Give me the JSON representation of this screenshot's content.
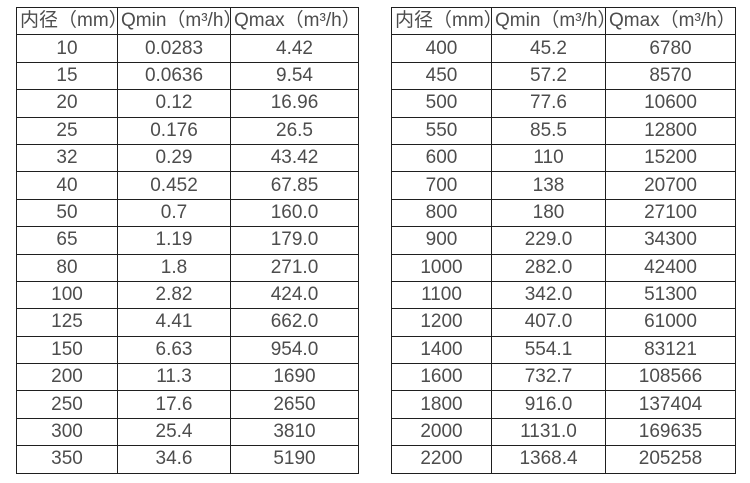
{
  "colors": {
    "background": "#ffffff",
    "border": "#1f1f1f",
    "text": "#4d4d4d"
  },
  "chart_data": [
    {
      "type": "table",
      "name": "flow-spec-table-small-diameters",
      "columns": [
        "内径（mm）",
        "Qmin（m³/h）",
        "Qmax（m³/h）"
      ],
      "rows": [
        [
          "10",
          "0.0283",
          "4.42"
        ],
        [
          "15",
          "0.0636",
          "9.54"
        ],
        [
          "20",
          "0.12",
          "16.96"
        ],
        [
          "25",
          "0.176",
          "26.5"
        ],
        [
          "32",
          "0.29",
          "43.42"
        ],
        [
          "40",
          "0.452",
          "67.85"
        ],
        [
          "50",
          "0.7",
          "160.0"
        ],
        [
          "65",
          "1.19",
          "179.0"
        ],
        [
          "80",
          "1.8",
          "271.0"
        ],
        [
          "100",
          "2.82",
          "424.0"
        ],
        [
          "125",
          "4.41",
          "662.0"
        ],
        [
          "150",
          "6.63",
          "954.0"
        ],
        [
          "200",
          "11.3",
          "1690"
        ],
        [
          "250",
          "17.6",
          "2650"
        ],
        [
          "300",
          "25.4",
          "3810"
        ],
        [
          "350",
          "34.6",
          "5190"
        ]
      ]
    },
    {
      "type": "table",
      "name": "flow-spec-table-large-diameters",
      "columns": [
        "内径（mm）",
        "Qmin（m³/h）",
        "Qmax（m³/h）"
      ],
      "rows": [
        [
          "400",
          "45.2",
          "6780"
        ],
        [
          "450",
          "57.2",
          "8570"
        ],
        [
          "500",
          "77.6",
          "10600"
        ],
        [
          "550",
          "85.5",
          "12800"
        ],
        [
          "600",
          "110",
          "15200"
        ],
        [
          "700",
          "138",
          "20700"
        ],
        [
          "800",
          "180",
          "27100"
        ],
        [
          "900",
          "229.0",
          "34300"
        ],
        [
          "1000",
          "282.0",
          "42400"
        ],
        [
          "1100",
          "342.0",
          "51300"
        ],
        [
          "1200",
          "407.0",
          "61000"
        ],
        [
          "1400",
          "554.1",
          "83121"
        ],
        [
          "1600",
          "732.7",
          "108566"
        ],
        [
          "1800",
          "916.0",
          "137404"
        ],
        [
          "2000",
          "1131.0",
          "169635"
        ],
        [
          "2200",
          "1368.4",
          "205258"
        ]
      ]
    }
  ]
}
